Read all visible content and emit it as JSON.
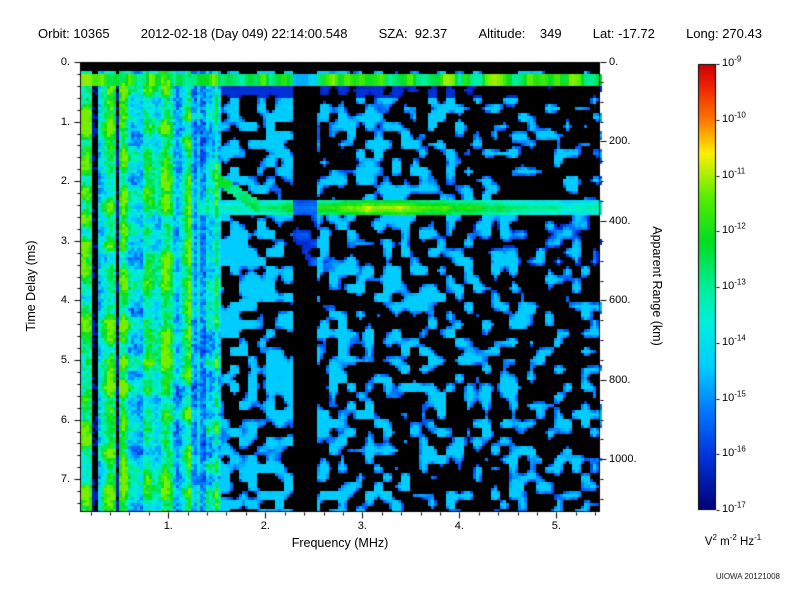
{
  "header": {
    "items": [
      "Orbit: 10365",
      "2012-02-18 (Day 049) 22:14:00.548",
      "SZA:  92.37",
      "Altitude:    349",
      "Lat: -17.72",
      "Long: 270.43"
    ]
  },
  "chart_data": {
    "type": "heatmap",
    "xlabel": "Frequency (MHz)",
    "ylabel_left": "Time Delay (ms)",
    "ylabel_right": "Apparent Range (km)",
    "x_range_mhz": [
      0.09,
      5.45
    ],
    "y_range_ms": [
      0,
      7.55
    ],
    "y2_range_km": [
      0,
      1132
    ],
    "km_per_ms": 150,
    "x_ticks": [
      {
        "value": 1,
        "label": "1."
      },
      {
        "value": 2,
        "label": "2."
      },
      {
        "value": 3,
        "label": "3."
      },
      {
        "value": 4,
        "label": "4."
      },
      {
        "value": 5,
        "label": "5."
      }
    ],
    "x_minor_step": 0.2,
    "y_ticks": [
      {
        "value": 0,
        "label": "0."
      },
      {
        "value": 1,
        "label": "1."
      },
      {
        "value": 2,
        "label": "2."
      },
      {
        "value": 3,
        "label": "3."
      },
      {
        "value": 4,
        "label": "4."
      },
      {
        "value": 5,
        "label": "5."
      },
      {
        "value": 6,
        "label": "6."
      },
      {
        "value": 7,
        "label": "7."
      }
    ],
    "y_minor_step": 0.2,
    "y2_ticks": [
      {
        "km": 0,
        "label": "0."
      },
      {
        "km": 200,
        "label": "200."
      },
      {
        "km": 400,
        "label": "400."
      },
      {
        "km": 600,
        "label": "600."
      },
      {
        "km": 800,
        "label": "800."
      },
      {
        "km": 1000,
        "label": "1000."
      }
    ],
    "y2_minor_step_km": 50,
    "background": "#000000",
    "colorbar": {
      "base": "10",
      "ticks": [
        "-9",
        "-10",
        "-11",
        "-12",
        "-13",
        "-14",
        "-15",
        "-16",
        "-17"
      ],
      "scale": "log",
      "unit": "V² m⁻² Hz⁻¹",
      "unit_parts": [
        {
          "t": "V",
          "s": "2"
        },
        {
          "t": " m",
          "s": "-2"
        },
        {
          "t": " Hz",
          "s": "-1"
        }
      ],
      "gradient": [
        [
          0.0,
          "#cc0000"
        ],
        [
          0.05,
          "#ee2200"
        ],
        [
          0.125,
          "#ff7700"
        ],
        [
          0.2,
          "#ffee00"
        ],
        [
          0.3,
          "#55ee00"
        ],
        [
          0.4,
          "#00dd22"
        ],
        [
          0.5,
          "#00ee99"
        ],
        [
          0.58,
          "#00eedd"
        ],
        [
          0.68,
          "#00ccff"
        ],
        [
          0.78,
          "#0077ff"
        ],
        [
          0.88,
          "#0033dd"
        ],
        [
          1.0,
          "#000077"
        ]
      ]
    },
    "credit": "UIOWA 20121008",
    "render": {
      "seed": 20121008,
      "features": {
        "striped_region_fmax_mhz": 1.55,
        "top_band_ms": [
          0.18,
          0.42
        ],
        "quiet_gap_ms": [
          0.42,
          0.62
        ],
        "surface_band_ms": [
          2.33,
          2.58
        ],
        "surface_band_fmin_mhz": 1.3,
        "surface_peak_center_mhz": 3.25,
        "dark_band_mhz": [
          2.28,
          2.52
        ],
        "cusp": {
          "f_mhz": [
            1.45,
            1.95
          ],
          "t_at_fmax_ms": 2.45,
          "slope_ms_per_mhz": 1.1
        }
      }
    }
  }
}
